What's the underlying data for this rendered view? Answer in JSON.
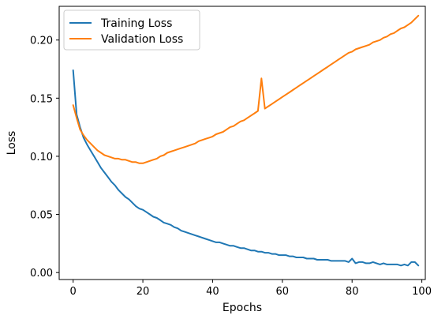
{
  "chart_data": {
    "type": "line",
    "xlabel": "Epochs",
    "ylabel": "Loss",
    "xlim": [
      -4,
      101
    ],
    "ylim": [
      -0.006,
      0.229
    ],
    "xticks": [
      0,
      20,
      40,
      60,
      80,
      100
    ],
    "yticks": [
      0.0,
      0.05,
      0.1,
      0.15,
      0.2
    ],
    "xtick_labels": [
      "0",
      "20",
      "40",
      "60",
      "80",
      "100"
    ],
    "ytick_labels": [
      "0.00",
      "0.05",
      "0.10",
      "0.15",
      "0.20"
    ],
    "grid": false,
    "legend_position": "top-left",
    "x": [
      0,
      1,
      2,
      3,
      4,
      5,
      6,
      7,
      8,
      9,
      10,
      11,
      12,
      13,
      14,
      15,
      16,
      17,
      18,
      19,
      20,
      21,
      22,
      23,
      24,
      25,
      26,
      27,
      28,
      29,
      30,
      31,
      32,
      33,
      34,
      35,
      36,
      37,
      38,
      39,
      40,
      41,
      42,
      43,
      44,
      45,
      46,
      47,
      48,
      49,
      50,
      51,
      52,
      53,
      54,
      55,
      56,
      57,
      58,
      59,
      60,
      61,
      62,
      63,
      64,
      65,
      66,
      67,
      68,
      69,
      70,
      71,
      72,
      73,
      74,
      75,
      76,
      77,
      78,
      79,
      80,
      81,
      82,
      83,
      84,
      85,
      86,
      87,
      88,
      89,
      90,
      91,
      92,
      93,
      94,
      95,
      96,
      97,
      98,
      99
    ],
    "series": [
      {
        "name": "Training Loss",
        "color": "#1f77b4",
        "values": [
          0.174,
          0.136,
          0.125,
          0.116,
          0.11,
          0.105,
          0.1,
          0.095,
          0.09,
          0.086,
          0.082,
          0.078,
          0.075,
          0.071,
          0.068,
          0.065,
          0.063,
          0.06,
          0.057,
          0.055,
          0.054,
          0.052,
          0.05,
          0.048,
          0.047,
          0.045,
          0.043,
          0.042,
          0.041,
          0.039,
          0.038,
          0.036,
          0.035,
          0.034,
          0.033,
          0.032,
          0.031,
          0.03,
          0.029,
          0.028,
          0.027,
          0.026,
          0.026,
          0.025,
          0.024,
          0.023,
          0.023,
          0.022,
          0.021,
          0.021,
          0.02,
          0.019,
          0.019,
          0.018,
          0.018,
          0.017,
          0.017,
          0.016,
          0.016,
          0.015,
          0.015,
          0.015,
          0.014,
          0.014,
          0.013,
          0.013,
          0.013,
          0.012,
          0.012,
          0.012,
          0.011,
          0.011,
          0.011,
          0.011,
          0.01,
          0.01,
          0.01,
          0.01,
          0.01,
          0.009,
          0.012,
          0.008,
          0.009,
          0.009,
          0.008,
          0.008,
          0.009,
          0.008,
          0.007,
          0.008,
          0.007,
          0.007,
          0.007,
          0.007,
          0.006,
          0.007,
          0.006,
          0.009,
          0.009,
          0.006
        ]
      },
      {
        "name": "Validation Loss",
        "color": "#ff7f0e",
        "values": [
          0.144,
          0.133,
          0.123,
          0.118,
          0.114,
          0.111,
          0.108,
          0.105,
          0.103,
          0.101,
          0.1,
          0.099,
          0.098,
          0.098,
          0.097,
          0.097,
          0.096,
          0.095,
          0.095,
          0.094,
          0.094,
          0.095,
          0.096,
          0.097,
          0.098,
          0.1,
          0.101,
          0.103,
          0.104,
          0.105,
          0.106,
          0.107,
          0.108,
          0.109,
          0.11,
          0.111,
          0.113,
          0.114,
          0.115,
          0.116,
          0.117,
          0.119,
          0.12,
          0.121,
          0.123,
          0.125,
          0.126,
          0.128,
          0.13,
          0.131,
          0.133,
          0.135,
          0.137,
          0.139,
          0.167,
          0.141,
          0.143,
          0.145,
          0.147,
          0.149,
          0.151,
          0.153,
          0.155,
          0.157,
          0.159,
          0.161,
          0.163,
          0.165,
          0.167,
          0.169,
          0.171,
          0.173,
          0.175,
          0.177,
          0.179,
          0.181,
          0.183,
          0.185,
          0.187,
          0.189,
          0.19,
          0.192,
          0.193,
          0.194,
          0.195,
          0.196,
          0.198,
          0.199,
          0.2,
          0.202,
          0.203,
          0.205,
          0.206,
          0.208,
          0.21,
          0.211,
          0.213,
          0.215,
          0.218,
          0.221
        ]
      }
    ]
  }
}
